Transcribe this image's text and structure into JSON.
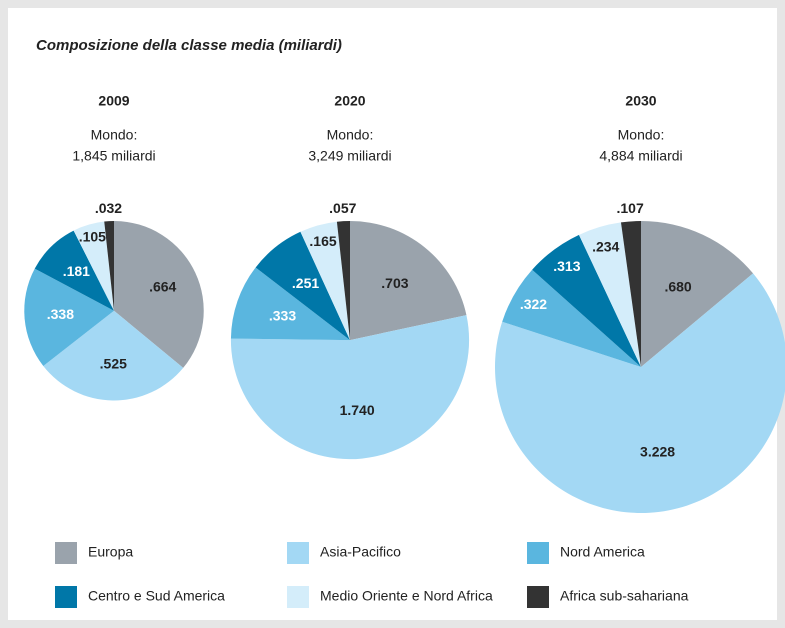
{
  "title": "Composizione della classe media (miliardi)",
  "chart_data": [
    {
      "type": "pie",
      "title": "2009",
      "subtitle": [
        "Mondo:",
        "1,845 miliardi"
      ],
      "categories": [
        "Europa",
        "Asia-Pacifico",
        "Nord America",
        "Centro e Sud America",
        "Medio Oriente e Nord Africa",
        "Africa sub-sahariana"
      ],
      "values": [
        0.664,
        0.525,
        0.338,
        0.181,
        0.105,
        0.032
      ],
      "value_labels": [
        ".664",
        ".525",
        ".338",
        ".181",
        ".105",
        ".032"
      ],
      "colors": [
        "#9aa3ac",
        "#a3d8f4",
        "#5ab6df",
        "#0077a8",
        "#d4edfa",
        "#333333"
      ]
    },
    {
      "type": "pie",
      "title": "2020",
      "subtitle": [
        "Mondo:",
        "3,249 miliardi"
      ],
      "categories": [
        "Europa",
        "Asia-Pacifico",
        "Nord America",
        "Centro e Sud America",
        "Medio Oriente e Nord Africa",
        "Africa sub-sahariana"
      ],
      "values": [
        0.703,
        1.74,
        0.333,
        0.251,
        0.165,
        0.057
      ],
      "value_labels": [
        ".703",
        "1.740",
        ".333",
        ".251",
        ".165",
        ".057"
      ],
      "colors": [
        "#9aa3ac",
        "#a3d8f4",
        "#5ab6df",
        "#0077a8",
        "#d4edfa",
        "#333333"
      ]
    },
    {
      "type": "pie",
      "title": "2030",
      "subtitle": [
        "Mondo:",
        "4,884 miliardi"
      ],
      "categories": [
        "Europa",
        "Asia-Pacifico",
        "Nord America",
        "Centro e Sud America",
        "Medio Oriente e Nord Africa",
        "Africa sub-sahariana"
      ],
      "values": [
        0.68,
        3.228,
        0.322,
        0.313,
        0.234,
        0.107
      ],
      "value_labels": [
        ".680",
        "3.228",
        ".322",
        ".313",
        ".234",
        ".107"
      ],
      "colors": [
        "#9aa3ac",
        "#a3d8f4",
        "#5ab6df",
        "#0077a8",
        "#d4edfa",
        "#333333"
      ]
    }
  ]
}
